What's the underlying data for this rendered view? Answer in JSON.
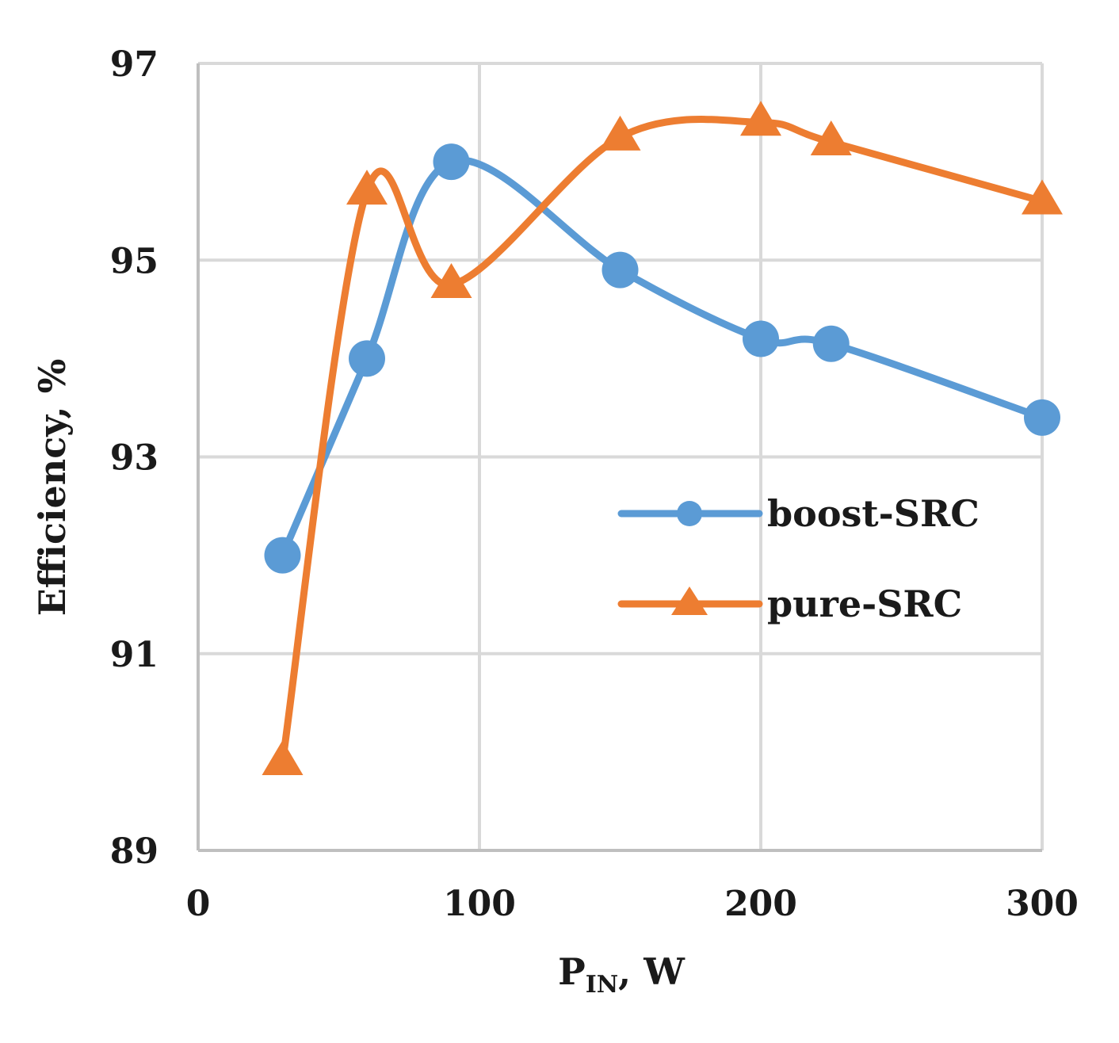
{
  "chart_data": {
    "type": "line",
    "title": "",
    "xlabel": {
      "main": "P",
      "subscript": "IN",
      "unit": ",  W"
    },
    "ylabel": "Efficiency, %",
    "xlim": [
      0,
      300
    ],
    "ylim": [
      89,
      97
    ],
    "x_ticks": [
      0,
      100,
      200,
      300
    ],
    "y_ticks": [
      89,
      91,
      93,
      95,
      97
    ],
    "x_tick_labels": [
      "0",
      "100",
      "200",
      "300"
    ],
    "y_tick_labels": [
      "89",
      "91",
      "93",
      "95",
      "97"
    ],
    "grid": true,
    "smooth": true,
    "legend_position": "center-right",
    "series": [
      {
        "name": "boost-SRC",
        "color": "#5B9BD5",
        "marker": "circle",
        "x": [
          30,
          60,
          90,
          150,
          200,
          225,
          300
        ],
        "y": [
          92.0,
          94.0,
          96.0,
          94.9,
          94.2,
          94.15,
          93.4
        ]
      },
      {
        "name": "pure-SRC",
        "color": "#ED7D31",
        "marker": "triangle",
        "x": [
          30,
          60,
          90,
          150,
          200,
          225,
          300
        ],
        "y": [
          89.9,
          95.7,
          94.75,
          96.25,
          96.4,
          96.2,
          95.6
        ]
      }
    ]
  }
}
